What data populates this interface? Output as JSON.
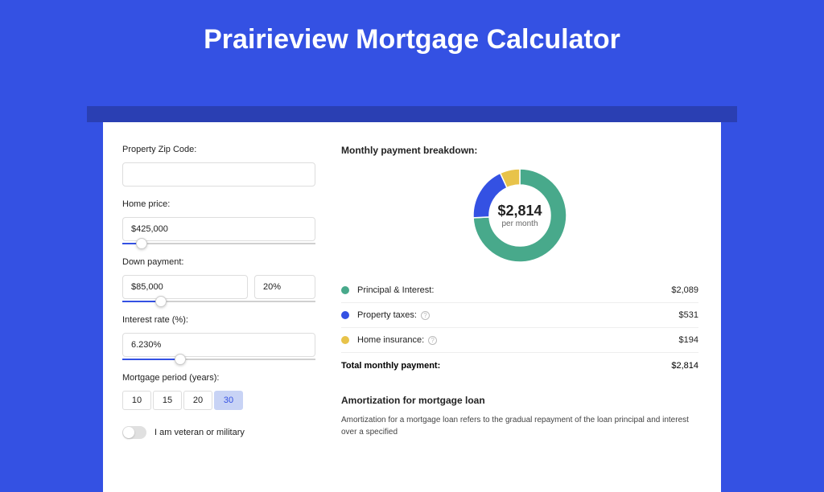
{
  "page_title": "Prairieview Mortgage Calculator",
  "background_color": "#3451e3",
  "strip_color": "#2a3fb3",
  "card_bg": "#ffffff",
  "form": {
    "zip": {
      "label": "Property Zip Code:",
      "value": ""
    },
    "home_price": {
      "label": "Home price:",
      "value": "$425,000",
      "slider_pct": 10
    },
    "down_payment": {
      "label": "Down payment:",
      "value": "$85,000",
      "pct": "20%",
      "slider_pct": 20
    },
    "interest": {
      "label": "Interest rate (%):",
      "value": "6.230%",
      "slider_pct": 30
    },
    "mort_period": {
      "label": "Mortgage period (years):",
      "options": [
        "10",
        "15",
        "20",
        "30"
      ],
      "selected": "30"
    },
    "veteran": {
      "label": "I am veteran or military",
      "checked": false
    }
  },
  "breakdown": {
    "title": "Monthly payment breakdown:",
    "center_amount": "$2,814",
    "center_sub": "per month",
    "donut": {
      "size": 120,
      "thickness": 20,
      "slices": [
        {
          "color": "#48a98b",
          "pct": 74.2
        },
        {
          "color": "#3451e3",
          "pct": 18.9
        },
        {
          "color": "#e8c34a",
          "pct": 6.9
        }
      ]
    },
    "rows": [
      {
        "color": "#48a98b",
        "label": "Principal & Interest:",
        "info": false,
        "value": "$2,089"
      },
      {
        "color": "#3451e3",
        "label": "Property taxes:",
        "info": true,
        "value": "$531"
      },
      {
        "color": "#e8c34a",
        "label": "Home insurance:",
        "info": true,
        "value": "$194"
      }
    ],
    "total": {
      "label": "Total monthly payment:",
      "value": "$2,814"
    }
  },
  "amort": {
    "title": "Amortization for mortgage loan",
    "text": "Amortization for a mortgage loan refers to the gradual repayment of the loan principal and interest over a specified"
  }
}
